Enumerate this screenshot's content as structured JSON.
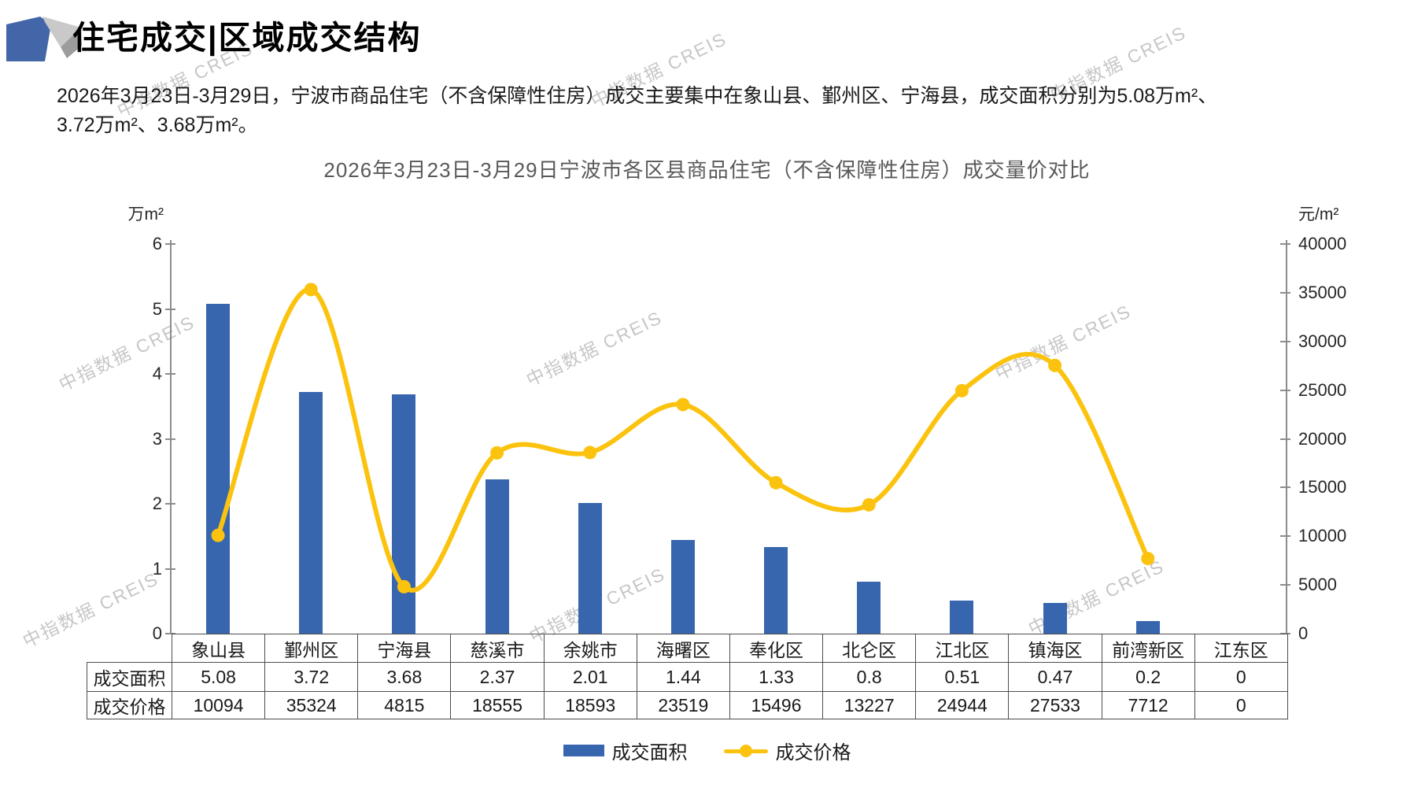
{
  "header": {
    "title": "住宅成交|区域成交结构",
    "paragraph_line1": "2026年3月23日-3月29日，宁波市商品住宅（不含保障性住房）成交主要集中在象山县、鄞州区、宁海县，成交面积分别为5.08万m²、",
    "paragraph_line2": "3.72万m²、3.68万m²。"
  },
  "watermark": {
    "text": "中指数据 CREIS"
  },
  "chart_data": {
    "type": "bar+line",
    "title": "2026年3月23日-3月29日宁波市各区县商品住宅（不含保障性住房）成交量价对比",
    "categories": [
      "象山县",
      "鄞州区",
      "宁海县",
      "慈溪市",
      "余姚市",
      "海曙区",
      "奉化区",
      "北仑区",
      "江北区",
      "镇海区",
      "前湾新区",
      "江东区"
    ],
    "series": [
      {
        "name": "成交面积",
        "type": "bar",
        "axis": "left",
        "values": [
          5.08,
          3.72,
          3.68,
          2.37,
          2.01,
          1.44,
          1.33,
          0.8,
          0.51,
          0.47,
          0.2,
          0
        ],
        "color": "#3866AE"
      },
      {
        "name": "成交价格",
        "type": "line",
        "axis": "right",
        "values": [
          10094,
          35324,
          4815,
          18555,
          18593,
          23519,
          15496,
          13227,
          24944,
          27533,
          7712,
          0
        ],
        "plot_points": 11,
        "color": "#FBC30E"
      }
    ],
    "left_axis": {
      "unit": "万m²",
      "min": 0,
      "max": 6,
      "step": 1,
      "ticks": [
        6,
        5,
        4,
        3,
        2,
        1,
        0
      ]
    },
    "right_axis": {
      "unit": "元/m²",
      "min": 0,
      "max": 40000,
      "step": 5000,
      "ticks": [
        40000,
        35000,
        30000,
        25000,
        20000,
        15000,
        10000,
        5000,
        0
      ]
    },
    "legend": [
      "成交面积",
      "成交价格"
    ],
    "grid": false,
    "legend_position": "bottom"
  },
  "table": {
    "row_headers": [
      "成交面积",
      "成交价格"
    ],
    "rows": [
      [
        "5.08",
        "3.72",
        "3.68",
        "2.37",
        "2.01",
        "1.44",
        "1.33",
        "0.8",
        "0.51",
        "0.47",
        "0.2",
        "0"
      ],
      [
        "10094",
        "35324",
        "4815",
        "18555",
        "18593",
        "23519",
        "15496",
        "13227",
        "24944",
        "27533",
        "7712",
        "0"
      ]
    ]
  }
}
